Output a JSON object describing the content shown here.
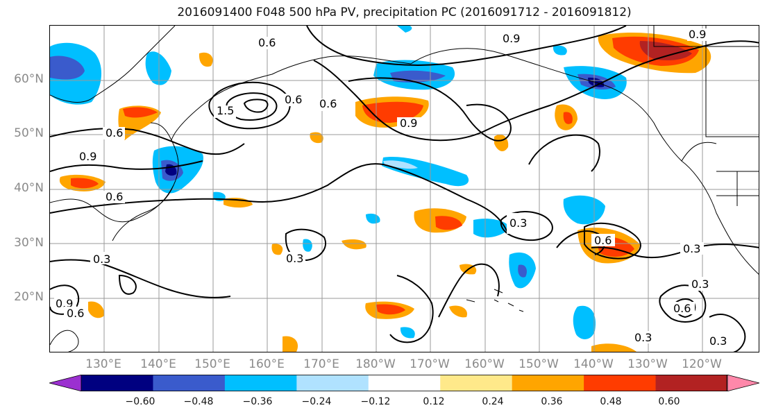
{
  "title": "2016091400 F048 500 hPa PV, precipitation PC (2016091712 - 2016091812)",
  "lat_labels": [
    "60°N",
    "50°N",
    "40°N",
    "30°N",
    "20°N"
  ],
  "lon_labels": [
    "130°E",
    "140°E",
    "150°E",
    "160°E",
    "170°E",
    "180°W",
    "170°W",
    "160°W",
    "150°W",
    "140°W",
    "130°W",
    "120°W"
  ],
  "contour_labels": [
    "0.6",
    "0.9",
    "1.5",
    "0.6",
    "0.6",
    "0.9",
    "0.6",
    "0.9",
    "0.6",
    "0.9",
    "0.3",
    "0.3",
    "0.3",
    "0.6",
    "0.3",
    "0.6",
    "0.3",
    "0.3",
    "0.9",
    "0.6",
    "0.3"
  ],
  "colorbar": {
    "ticks": [
      "−0.60",
      "−0.48",
      "−0.36",
      "−0.24",
      "−0.12",
      "0.12",
      "0.24",
      "0.36",
      "0.48",
      "0.60"
    ],
    "colors": [
      "#9b30d0",
      "#000080",
      "#3a5bcc",
      "#00bfff",
      "#b0e2ff",
      "#ffffff",
      "#ffe98a",
      "#ffa500",
      "#ff3c00",
      "#b22222",
      "#ff88aa"
    ]
  }
}
